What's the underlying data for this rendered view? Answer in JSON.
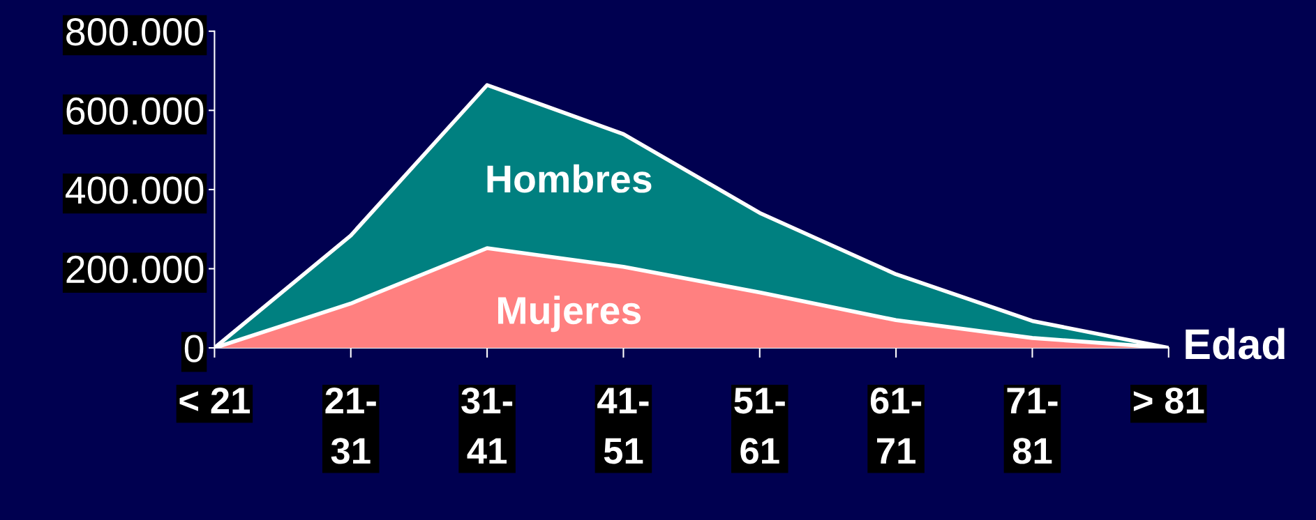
{
  "chart_data": {
    "type": "area",
    "categories": [
      "< 21",
      "21-\n31",
      "31-\n41",
      "41-\n51",
      "51-\n61",
      "61-\n71",
      "71-\n81",
      "> 81"
    ],
    "xlabel": "Edad",
    "series": [
      {
        "name": "Hombres",
        "color": "#008080",
        "values": [
          0,
          284000,
          664000,
          540000,
          341000,
          186000,
          68000,
          0
        ]
      },
      {
        "name": "Mujeres",
        "color": "#ff8080",
        "values": [
          0,
          112000,
          252000,
          205000,
          140000,
          70000,
          25000,
          0
        ]
      }
    ],
    "ylim": [
      0,
      800000
    ],
    "yticks": [
      {
        "value": 0,
        "label": "0"
      },
      {
        "value": 200000,
        "label": "200.000"
      },
      {
        "value": 400000,
        "label": "400.000"
      },
      {
        "value": 600000,
        "label": "600.000"
      },
      {
        "value": 800000,
        "label": "800.000"
      }
    ],
    "grid": false,
    "legend": false
  }
}
